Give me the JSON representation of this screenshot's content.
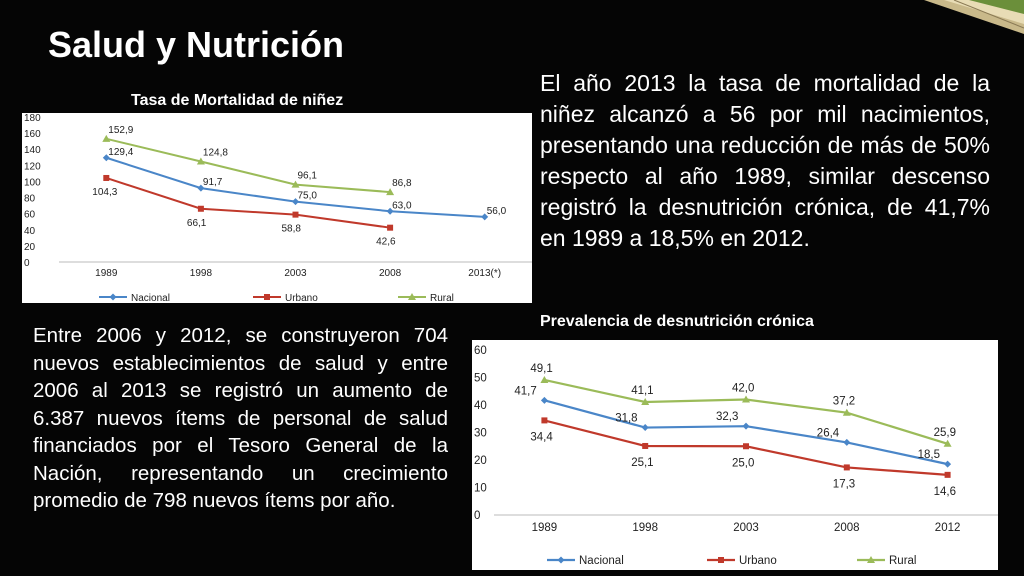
{
  "slide": {
    "title": "Salud y Nutrición",
    "paragraph_right": "El año 2013 la tasa de mortalidad de la niñez alcanzó a 56 por mil nacimientos, presentando una reducción de más de 50% respecto al año 1989, similar descenso registró la desnutrición crónica, de 41,7% en 1989 a 18,5% en 2012.",
    "paragraph_left": "Entre 2006 y 2012, se construyeron 704 nuevos establecimientos de salud y entre 2006 al 2013 se registró un aumento de 6.387 nuevos ítems de personal de salud financiados por el Tesoro General de la Nación, representando un crecimiento promedio de 798 nuevos ítems por año."
  },
  "colors": {
    "nacional": "#4a86c8",
    "urbano": "#c0392b",
    "rural": "#9bbb59"
  },
  "chart_data": [
    {
      "type": "line",
      "title": "Tasa de Mortalidad de niñez",
      "categories": [
        "1989",
        "1998",
        "2003",
        "2008",
        "2013(*)"
      ],
      "ylim": [
        0,
        180
      ],
      "yticks": [
        0,
        20,
        40,
        60,
        80,
        100,
        120,
        140,
        160,
        180
      ],
      "grid": false,
      "legend": "bottom",
      "series": [
        {
          "name": "Nacional",
          "values": [
            129.4,
            91.7,
            75.0,
            63.0,
            56.0
          ],
          "labels": [
            "129,4",
            "91,7",
            "75,0",
            "63,0",
            "56,0"
          ]
        },
        {
          "name": "Urbano",
          "values": [
            104.3,
            66.1,
            58.8,
            42.6,
            null
          ],
          "labels": [
            "104,3",
            "66,1",
            "58,8",
            "42,6",
            ""
          ]
        },
        {
          "name": "Rural",
          "values": [
            152.9,
            124.8,
            96.1,
            86.8,
            null
          ],
          "labels": [
            "152,9",
            "124,8",
            "96,1",
            "86,8",
            ""
          ]
        }
      ]
    },
    {
      "type": "line",
      "title": "Prevalencia de desnutrición crónica",
      "categories": [
        "1989",
        "1998",
        "2003",
        "2008",
        "2012"
      ],
      "ylim": [
        0,
        60
      ],
      "yticks": [
        0,
        10,
        20,
        30,
        40,
        50,
        60
      ],
      "grid": false,
      "legend": "bottom",
      "series": [
        {
          "name": "Nacional",
          "values": [
            41.7,
            31.8,
            32.3,
            26.4,
            18.5
          ],
          "labels": [
            "41,7",
            "31,8",
            "32,3",
            "26,4",
            "18,5"
          ]
        },
        {
          "name": "Urbano",
          "values": [
            34.4,
            25.1,
            25.0,
            17.3,
            14.6
          ],
          "labels": [
            "34,4",
            "25,1",
            "25,0",
            "17,3",
            "14,6"
          ]
        },
        {
          "name": "Rural",
          "values": [
            49.1,
            41.1,
            42.0,
            37.2,
            25.9
          ],
          "labels": [
            "49,1",
            "41,1",
            "42,0",
            "37,2",
            "25,9"
          ]
        }
      ]
    }
  ]
}
